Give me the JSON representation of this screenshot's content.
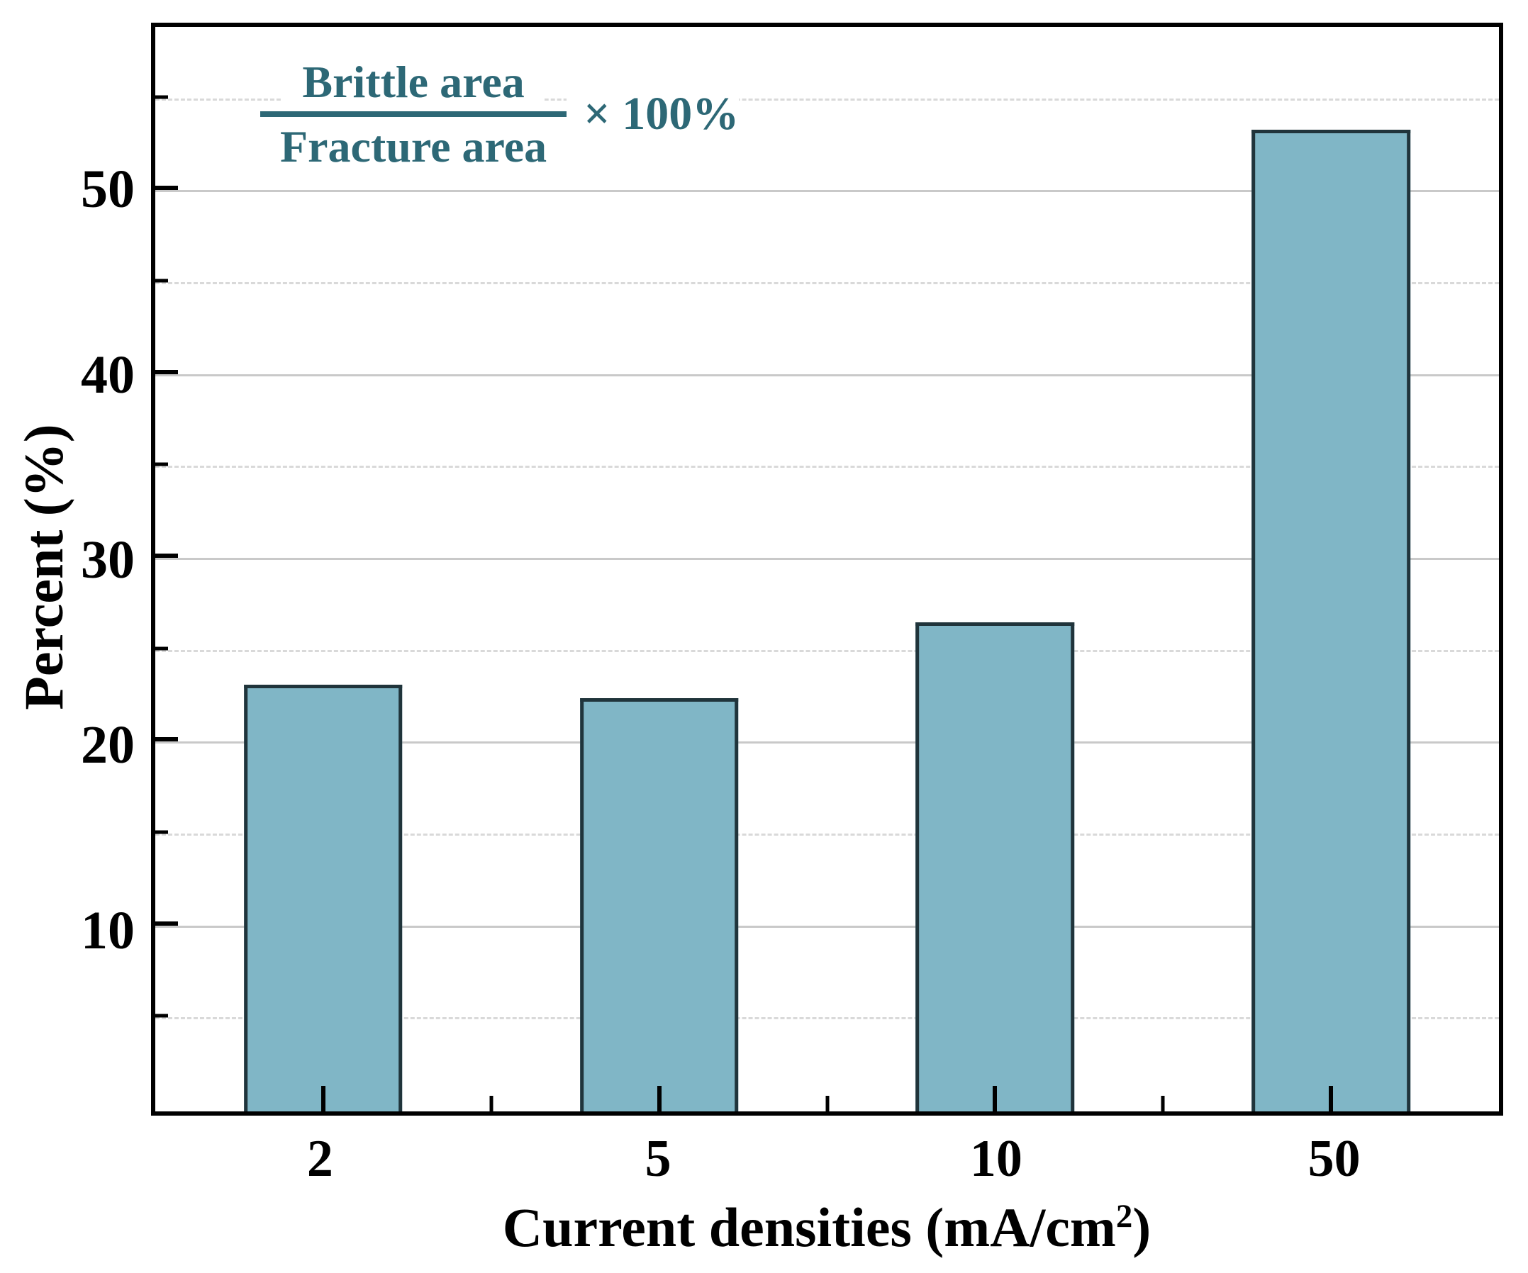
{
  "chart_data": {
    "type": "bar",
    "categories": [
      "2",
      "5",
      "10",
      "50"
    ],
    "values": [
      23.2,
      22.5,
      26.6,
      53.4
    ],
    "title": "",
    "xlabel": "Current densities (mA/cm2)",
    "xlabel_parts": {
      "pre": "Current densities (mA/cm",
      "sup": "2",
      "post": ")"
    },
    "ylabel": "Percent (%)",
    "ylim": [
      0,
      59
    ],
    "y_major_ticks": [
      10,
      20,
      30,
      40,
      50
    ],
    "y_minor_ticks": [
      5,
      15,
      25,
      35,
      45,
      55
    ],
    "grid": "horizontal; solid gray at major ticks, light dashed at minor ticks",
    "legend": "none",
    "annotation": {
      "numerator": "Brittle area",
      "denominator": "Fracture area",
      "suffix": "× 100%"
    },
    "colors": {
      "bar_fill": "#80B6C6",
      "bar_edge": "#20343B",
      "annotation_text": "#2D6876",
      "grid_major": "#c9c9c9",
      "grid_minor": "#d9d9d9",
      "axis": "#000000",
      "background": "#ffffff"
    }
  }
}
